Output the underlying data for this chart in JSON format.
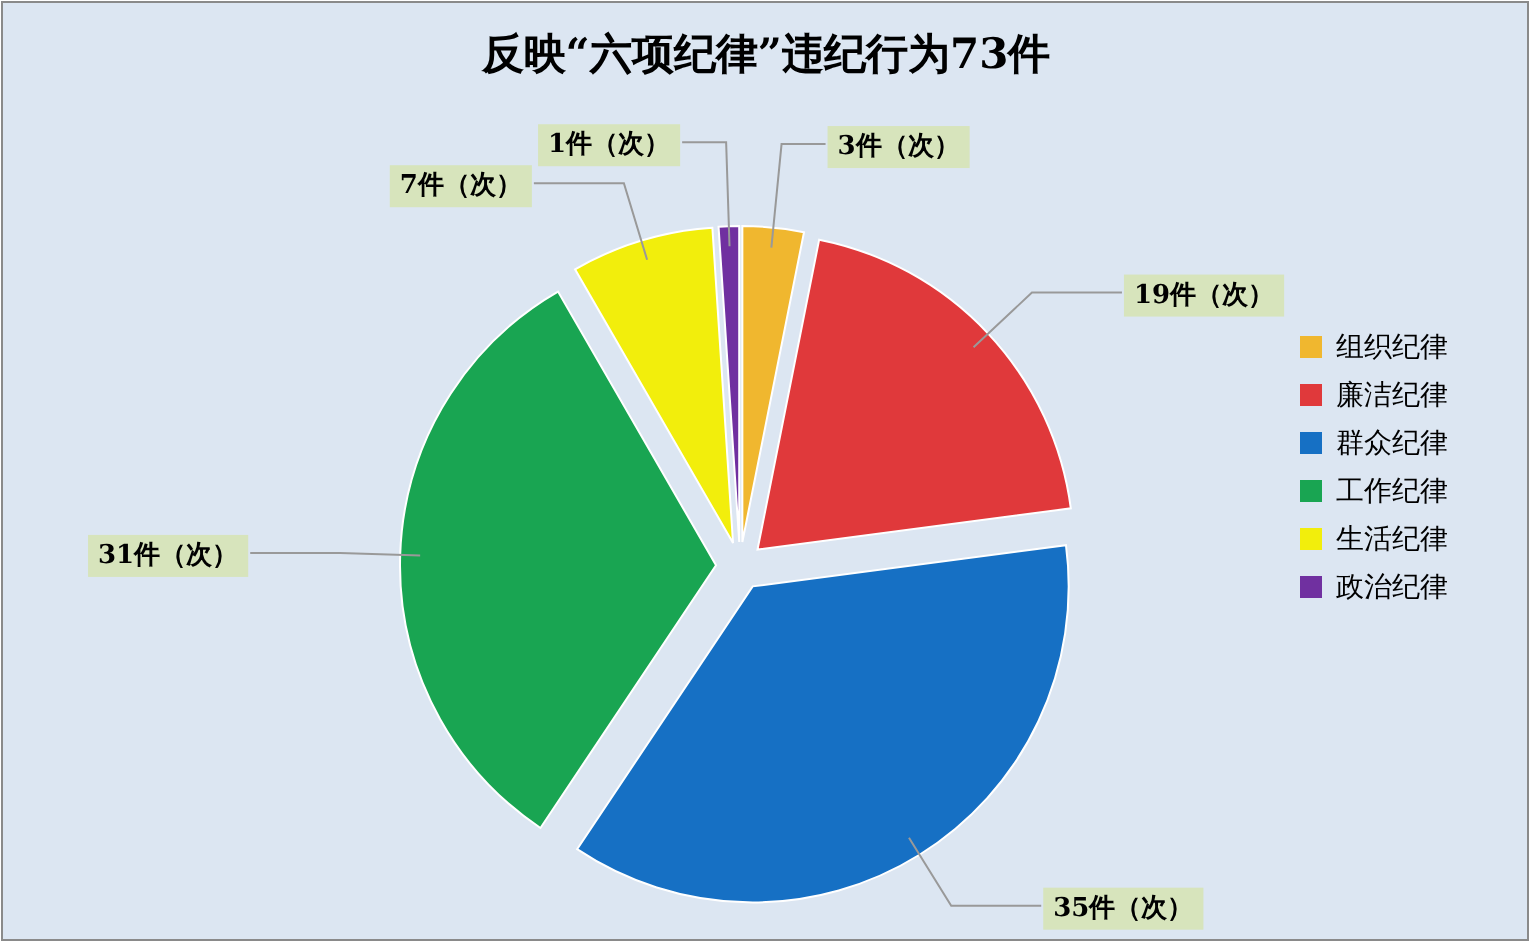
{
  "chart_data": {
    "type": "pie",
    "title": "反映“六项纪律”违纪行为73件",
    "categories": [
      "组织纪律",
      "廉洁纪律",
      "群众纪律",
      "工作纪律",
      "生活纪律",
      "政治纪律"
    ],
    "values": [
      3,
      19,
      35,
      31,
      7,
      1
    ],
    "colors": [
      "#f0b72f",
      "#e0393b",
      "#1670c4",
      "#19a552",
      "#f2ee0c",
      "#7030a0"
    ],
    "value_labels": [
      "3件（次）",
      "19件（次）",
      "35件（次）",
      "31件（次）",
      "7件（次）",
      "1件（次）"
    ],
    "legend": "right"
  }
}
